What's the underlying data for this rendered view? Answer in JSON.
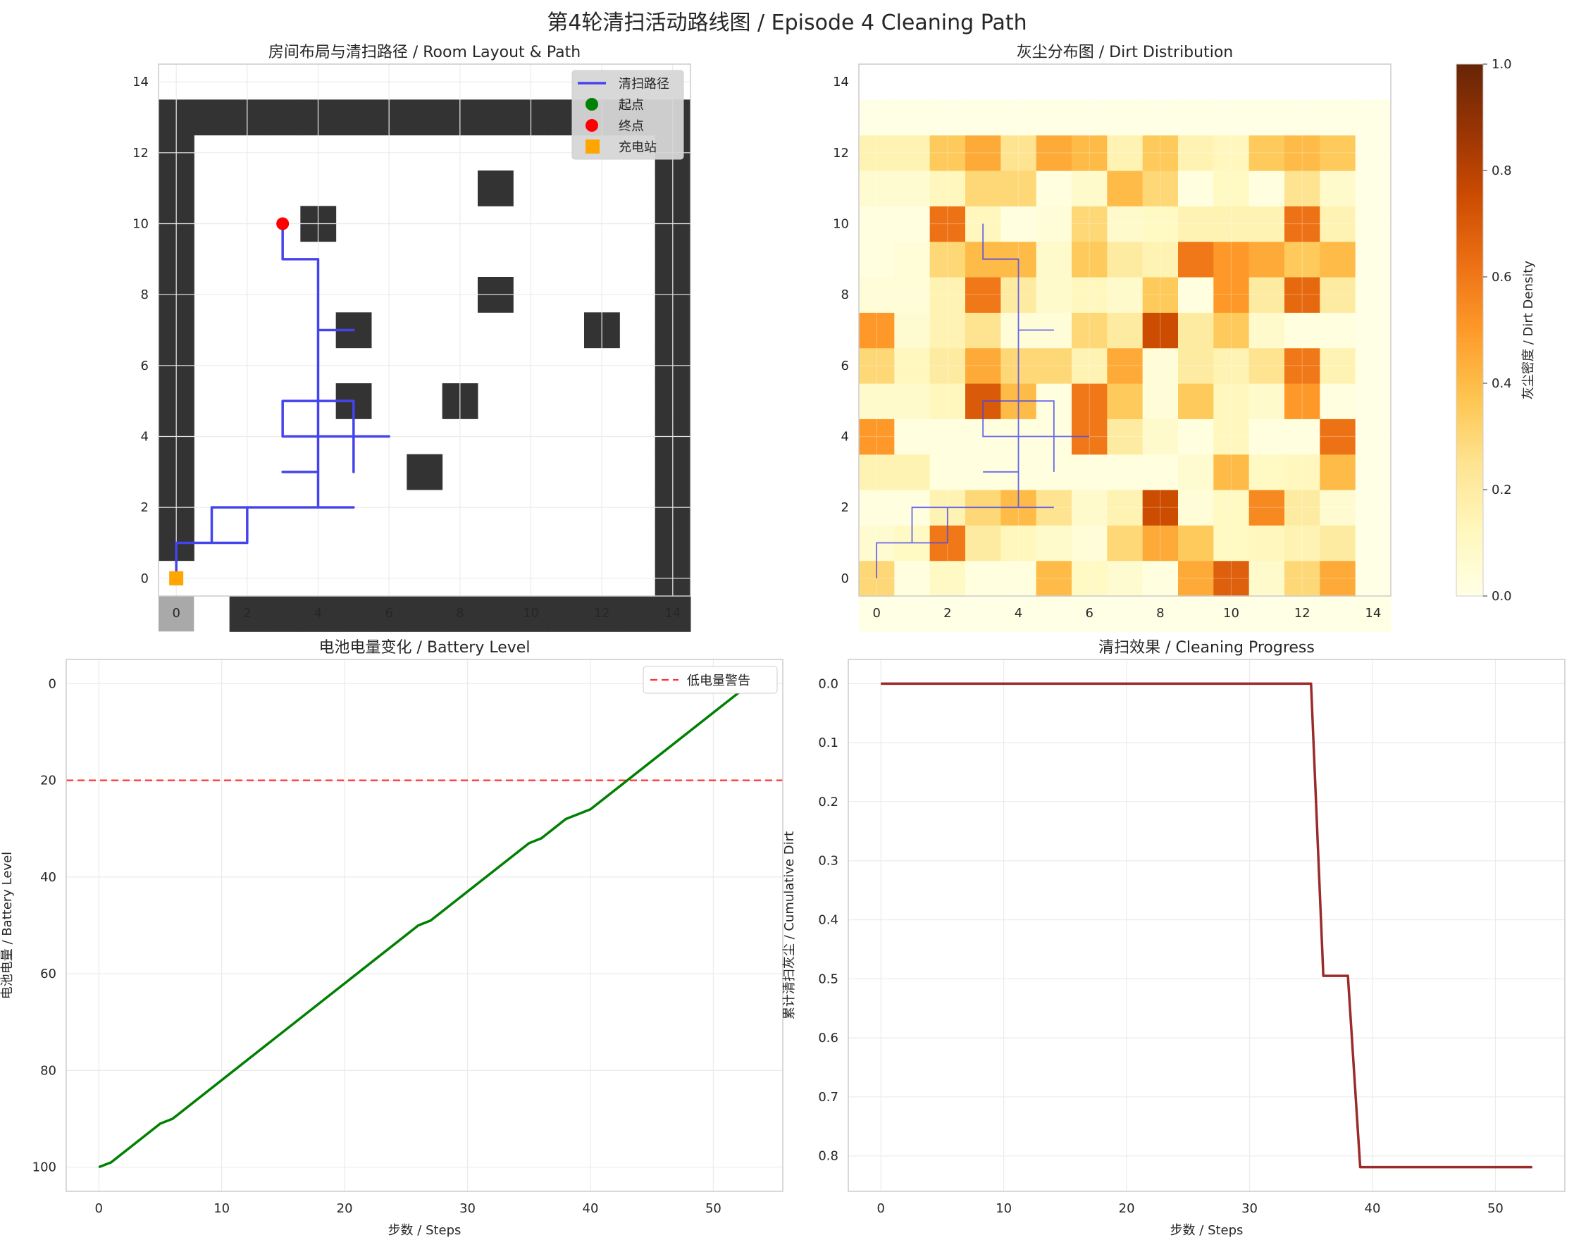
{
  "suptitle": "第4轮清扫活动路线图 / Episode 4 Cleaning Path",
  "chart_data": [
    {
      "type": "grid-map",
      "title": "房间布局与清扫路径 / Room Layout & Path",
      "xlim": [
        -0.5,
        14.5
      ],
      "ylim": [
        14.5,
        -0.5
      ],
      "xticks": [
        0,
        2,
        4,
        6,
        8,
        10,
        12,
        14
      ],
      "yticks": [
        0,
        2,
        4,
        6,
        8,
        10,
        12,
        14
      ],
      "grid": true,
      "legend_position": "top-right",
      "legend": [
        {
          "label": "清扫路径",
          "marker": "line",
          "color": "#4444ee"
        },
        {
          "label": "起点",
          "marker": "circle",
          "color": "#008000"
        },
        {
          "label": "终点",
          "marker": "circle",
          "color": "#ff0000"
        },
        {
          "label": "充电站",
          "marker": "square",
          "color": "#ffa500"
        }
      ],
      "wall_color": "#333333",
      "free_color": "#ffffff",
      "station_cell_color": "#a9a9a9",
      "walls": [
        [
          0,
          2
        ],
        [
          0,
          3
        ],
        [
          0,
          4
        ],
        [
          0,
          5
        ],
        [
          0,
          6
        ],
        [
          0,
          7
        ],
        [
          0,
          8
        ],
        [
          0,
          9
        ],
        [
          0,
          10
        ],
        [
          0,
          11
        ],
        [
          0,
          12
        ],
        [
          0,
          13
        ],
        [
          0,
          14
        ],
        [
          2,
          0
        ],
        [
          3,
          0
        ],
        [
          4,
          0
        ],
        [
          5,
          0
        ],
        [
          6,
          0
        ],
        [
          7,
          0
        ],
        [
          8,
          0
        ],
        [
          9,
          0
        ],
        [
          10,
          0
        ],
        [
          11,
          0
        ],
        [
          12,
          0
        ],
        [
          13,
          0
        ],
        [
          14,
          0
        ],
        [
          14,
          1
        ],
        [
          14,
          2
        ],
        [
          14,
          3
        ],
        [
          14,
          4
        ],
        [
          14,
          5
        ],
        [
          14,
          6
        ],
        [
          14,
          7
        ],
        [
          14,
          8
        ],
        [
          14,
          9
        ],
        [
          14,
          10
        ],
        [
          14,
          11
        ],
        [
          14,
          12
        ],
        [
          14,
          13
        ],
        [
          14,
          14
        ],
        [
          1,
          14
        ],
        [
          2,
          14
        ],
        [
          3,
          14
        ],
        [
          4,
          14
        ],
        [
          5,
          14
        ],
        [
          6,
          14
        ],
        [
          7,
          14
        ],
        [
          8,
          14
        ],
        [
          9,
          14
        ],
        [
          10,
          14
        ],
        [
          11,
          14
        ],
        [
          12,
          14
        ],
        [
          13,
          14
        ],
        [
          7,
          4
        ],
        [
          5,
          6
        ],
        [
          8,
          6
        ],
        [
          5,
          8
        ],
        [
          12,
          8
        ],
        [
          9,
          9
        ],
        [
          4,
          11
        ],
        [
          9,
          12
        ]
      ],
      "station_cell": [
        0,
        0
      ],
      "path": [
        [
          0,
          0
        ],
        [
          0,
          1
        ],
        [
          1,
          1
        ],
        [
          2,
          1
        ],
        [
          2,
          2
        ],
        [
          1,
          2
        ],
        [
          1,
          1
        ],
        [
          1,
          2
        ],
        [
          2,
          2
        ],
        [
          3,
          2
        ],
        [
          4,
          2
        ],
        [
          5,
          2
        ],
        [
          4,
          2
        ],
        [
          4,
          3
        ],
        [
          3,
          3
        ],
        [
          4,
          3
        ],
        [
          4,
          4
        ],
        [
          5,
          4
        ],
        [
          6,
          4
        ],
        [
          5,
          4
        ],
        [
          5,
          3
        ],
        [
          5,
          4
        ],
        [
          5,
          5
        ],
        [
          4,
          5
        ],
        [
          3,
          5
        ],
        [
          3,
          4
        ],
        [
          4,
          4
        ],
        [
          4,
          5
        ],
        [
          4,
          6
        ],
        [
          4,
          7
        ],
        [
          5,
          7
        ],
        [
          4,
          7
        ],
        [
          4,
          8
        ],
        [
          4,
          9
        ],
        [
          3,
          9
        ],
        [
          3,
          10
        ]
      ],
      "path_color": "#4444ee",
      "start": [
        0,
        0
      ],
      "end": [
        3,
        10
      ],
      "charging_station": [
        0,
        0
      ]
    },
    {
      "type": "heatmap",
      "title": "灰尘分布图 / Dirt Distribution",
      "xlim": [
        -0.5,
        14.5
      ],
      "ylim": [
        14.5,
        -0.5
      ],
      "xticks": [
        0,
        2,
        4,
        6,
        8,
        10,
        12,
        14
      ],
      "yticks": [
        0,
        2,
        4,
        6,
        8,
        10,
        12,
        14
      ],
      "colorbar_label": "灰尘密度 / Dirt Density",
      "colorbar_ticks": [
        0.0,
        0.2,
        0.4,
        0.6,
        0.8,
        1.0
      ],
      "vmin": 0,
      "vmax": 1,
      "colormap": "YlOrBr",
      "values": [
        [
          0,
          0,
          0,
          0,
          0,
          0,
          0,
          0,
          0,
          0,
          0,
          0,
          0,
          0,
          0
        ],
        [
          0.3,
          0.02,
          0.1,
          0.02,
          0.02,
          0.4,
          0.1,
          0.06,
          0.02,
          0.45,
          0.68,
          0.08,
          0.3,
          0.45,
          0
        ],
        [
          0.06,
          0.1,
          0.6,
          0.2,
          0.12,
          0.08,
          0.04,
          0.3,
          0.45,
          0.35,
          0.1,
          0.12,
          0.15,
          0.2,
          0
        ],
        [
          0.02,
          0.02,
          0.15,
          0.3,
          0.4,
          0.25,
          0.08,
          0.15,
          0.75,
          0.04,
          0.1,
          0.55,
          0.2,
          0.06,
          0
        ],
        [
          0.15,
          0.15,
          0.02,
          0.02,
          0.02,
          0.02,
          0.02,
          0.02,
          0.02,
          0.06,
          0.4,
          0.1,
          0.12,
          0.4,
          0
        ],
        [
          0.5,
          0.02,
          0.02,
          0.02,
          0.02,
          0.02,
          0.6,
          0.2,
          0.08,
          0.02,
          0.12,
          0.02,
          0.02,
          0.62,
          0
        ],
        [
          0.08,
          0.08,
          0.12,
          0.7,
          0.4,
          0.02,
          0.6,
          0.35,
          0.04,
          0.35,
          0.12,
          0.08,
          0.5,
          0.02,
          0
        ],
        [
          0.3,
          0.12,
          0.2,
          0.45,
          0.3,
          0.3,
          0.15,
          0.45,
          0.04,
          0.2,
          0.15,
          0.25,
          0.6,
          0.15,
          0
        ],
        [
          0.5,
          0.06,
          0.15,
          0.25,
          0.04,
          0.04,
          0.3,
          0.2,
          0.75,
          0.2,
          0.35,
          0.08,
          0.02,
          0.02,
          0
        ],
        [
          0.04,
          0.04,
          0.15,
          0.6,
          0.2,
          0.08,
          0.12,
          0.08,
          0.35,
          0.02,
          0.5,
          0.2,
          0.65,
          0.2,
          0
        ],
        [
          0.02,
          0.04,
          0.3,
          0.4,
          0.4,
          0.08,
          0.35,
          0.2,
          0.15,
          0.6,
          0.5,
          0.45,
          0.35,
          0.4,
          0
        ],
        [
          0.02,
          0.02,
          0.62,
          0.12,
          0.02,
          0.04,
          0.3,
          0.08,
          0.1,
          0.15,
          0.15,
          0.15,
          0.62,
          0.15,
          0
        ],
        [
          0.06,
          0.06,
          0.12,
          0.3,
          0.3,
          0.02,
          0.08,
          0.4,
          0.3,
          0.02,
          0.1,
          0.02,
          0.25,
          0.08,
          0
        ],
        [
          0.15,
          0.15,
          0.35,
          0.45,
          0.25,
          0.45,
          0.4,
          0.15,
          0.35,
          0.15,
          0.12,
          0.35,
          0.4,
          0.35,
          0
        ],
        [
          0,
          0,
          0,
          0,
          0,
          0,
          0,
          0,
          0,
          0,
          0,
          0,
          0,
          0,
          0
        ]
      ],
      "path_overlay_color": "#4444ee"
    },
    {
      "type": "line",
      "title": "电池电量变化 / Battery Level",
      "xlabel": "步数 / Steps",
      "ylabel": "电池电量 / Battery Level",
      "xlim": [
        -2.65,
        55.65
      ],
      "ylim": [
        -5,
        105
      ],
      "xticks": [
        0,
        10,
        20,
        30,
        40,
        50
      ],
      "yticks": [
        0,
        20,
        40,
        60,
        80,
        100
      ],
      "grid": true,
      "legend_position": "top-right",
      "series": [
        {
          "color": "#008000",
          "x": [
            0,
            1,
            5,
            6,
            26,
            27,
            35,
            36,
            38,
            40,
            53
          ],
          "y": [
            100,
            99,
            91,
            90,
            50,
            49,
            33,
            32,
            28,
            26,
            0
          ]
        }
      ],
      "reference_line": {
        "y": 20,
        "label": "低电量警告",
        "color": "#ff3333",
        "style": "dashed"
      }
    },
    {
      "type": "line",
      "title": "清扫效果 / Cleaning Progress",
      "xlabel": "步数 / Steps",
      "ylabel": "累计清扫灰尘 / Cumulative Dirt",
      "xlim": [
        -2.65,
        55.65
      ],
      "ylim": [
        -0.041,
        0.86
      ],
      "xticks": [
        0,
        10,
        20,
        30,
        40,
        50
      ],
      "yticks": [
        0.0,
        0.1,
        0.2,
        0.3,
        0.4,
        0.5,
        0.6,
        0.7,
        0.8
      ],
      "grid": true,
      "series": [
        {
          "color": "#9b2a2a",
          "x": [
            0,
            35,
            36,
            38,
            39,
            53
          ],
          "y": [
            0,
            0,
            0.495,
            0.495,
            0.819,
            0.819
          ]
        }
      ]
    }
  ]
}
